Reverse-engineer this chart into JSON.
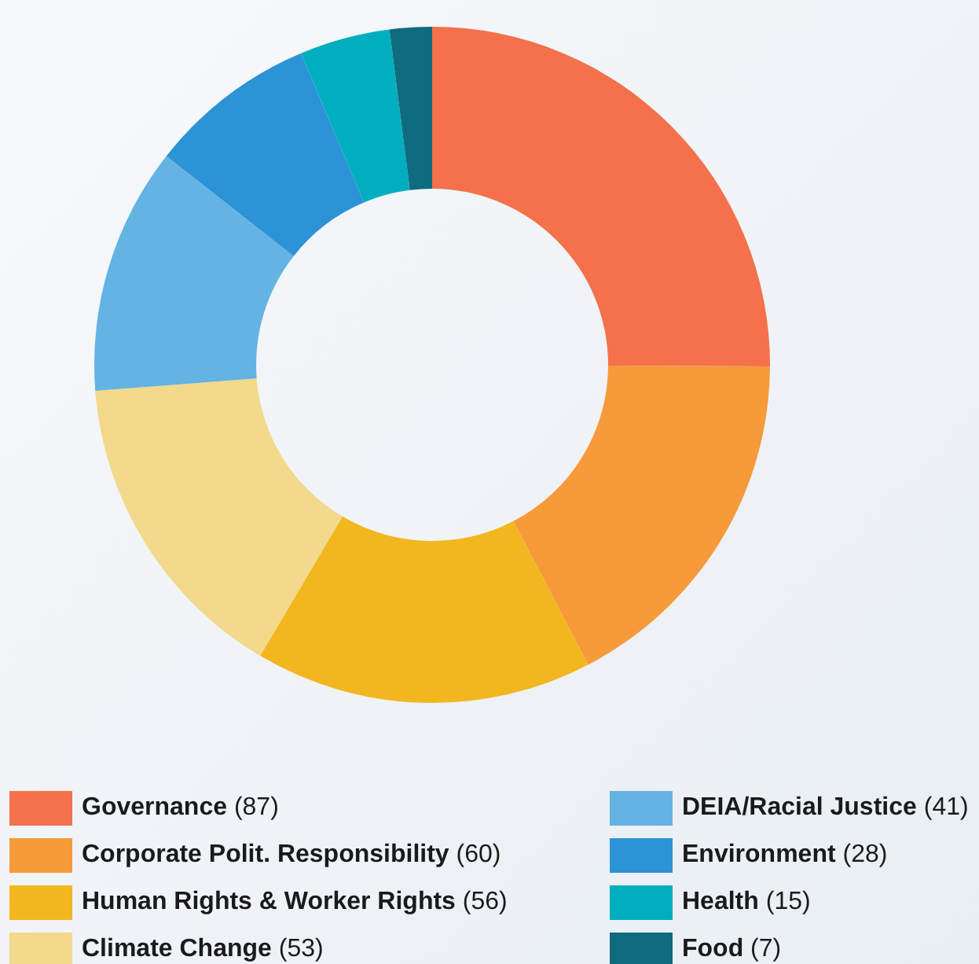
{
  "chart_data": {
    "type": "donut",
    "categories": [
      "Governance",
      "Corporate Polit. Responsibility",
      "Human Rights & Worker Rights",
      "Climate Change",
      "DEIA/Racial Justice",
      "Environment",
      "Health",
      "Food"
    ],
    "values": [
      87,
      60,
      56,
      53,
      41,
      28,
      15,
      7
    ],
    "value_labels": [
      "(87)",
      "(60)",
      "(56)",
      "(53)",
      "(41)",
      "(28)",
      "(15)",
      "(7)"
    ],
    "colors": [
      "#f4714b",
      "#f79a3a",
      "#f2b71f",
      "#f2d98b",
      "#63b3e3",
      "#2b93d6",
      "#00aec0",
      "#0f6b7e"
    ],
    "legend": "bottom"
  }
}
